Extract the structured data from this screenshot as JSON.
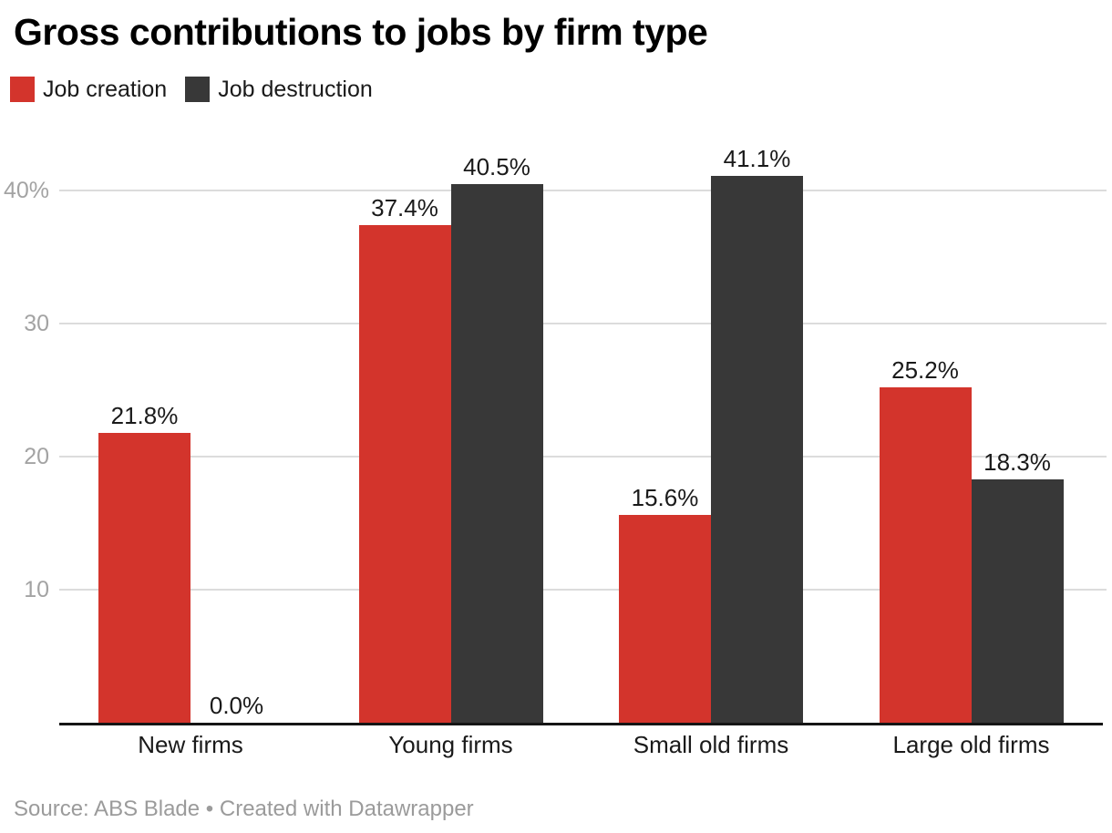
{
  "title": "Gross contributions to jobs by firm type",
  "footer": "Source: ABS Blade • Created with Datawrapper",
  "colors": {
    "job_creation": "#d3342c",
    "job_destruction": "#383838",
    "grid": "#dcdcdc",
    "axis": "#151515",
    "tick_label": "#a3a3a3",
    "text": "#1a1a1a",
    "footer_text": "#9b9b9b"
  },
  "legend": {
    "items": [
      {
        "key": "job-creation",
        "label": "Job creation",
        "color_key": "job_creation"
      },
      {
        "key": "job-destruction",
        "label": "Job destruction",
        "color_key": "job_destruction"
      }
    ]
  },
  "chart_data": {
    "type": "bar",
    "title": "Gross contributions to jobs by firm type",
    "categories": [
      "New firms",
      "Young firms",
      "Small old firms",
      "Large old firms"
    ],
    "series": [
      {
        "name": "Job creation",
        "color_key": "job_creation",
        "values": [
          21.8,
          37.4,
          15.6,
          25.2
        ],
        "labels": [
          "21.8%",
          "37.4%",
          "15.6%",
          "25.2%"
        ]
      },
      {
        "name": "Job destruction",
        "color_key": "job_destruction",
        "values": [
          0.0,
          40.5,
          41.1,
          18.3
        ],
        "labels": [
          "0.0%",
          "40.5%",
          "41.1%",
          "18.3%"
        ]
      }
    ],
    "yticks": [
      {
        "value": 10,
        "label": "10"
      },
      {
        "value": 20,
        "label": "20"
      },
      {
        "value": 30,
        "label": "30"
      },
      {
        "value": 40,
        "label": "40%"
      }
    ],
    "ylim": [
      0,
      43.8
    ],
    "xlabel": "",
    "ylabel": "",
    "grid": "horizontal",
    "legend_position": "top",
    "value_label_format": "percent-one-decimal"
  }
}
